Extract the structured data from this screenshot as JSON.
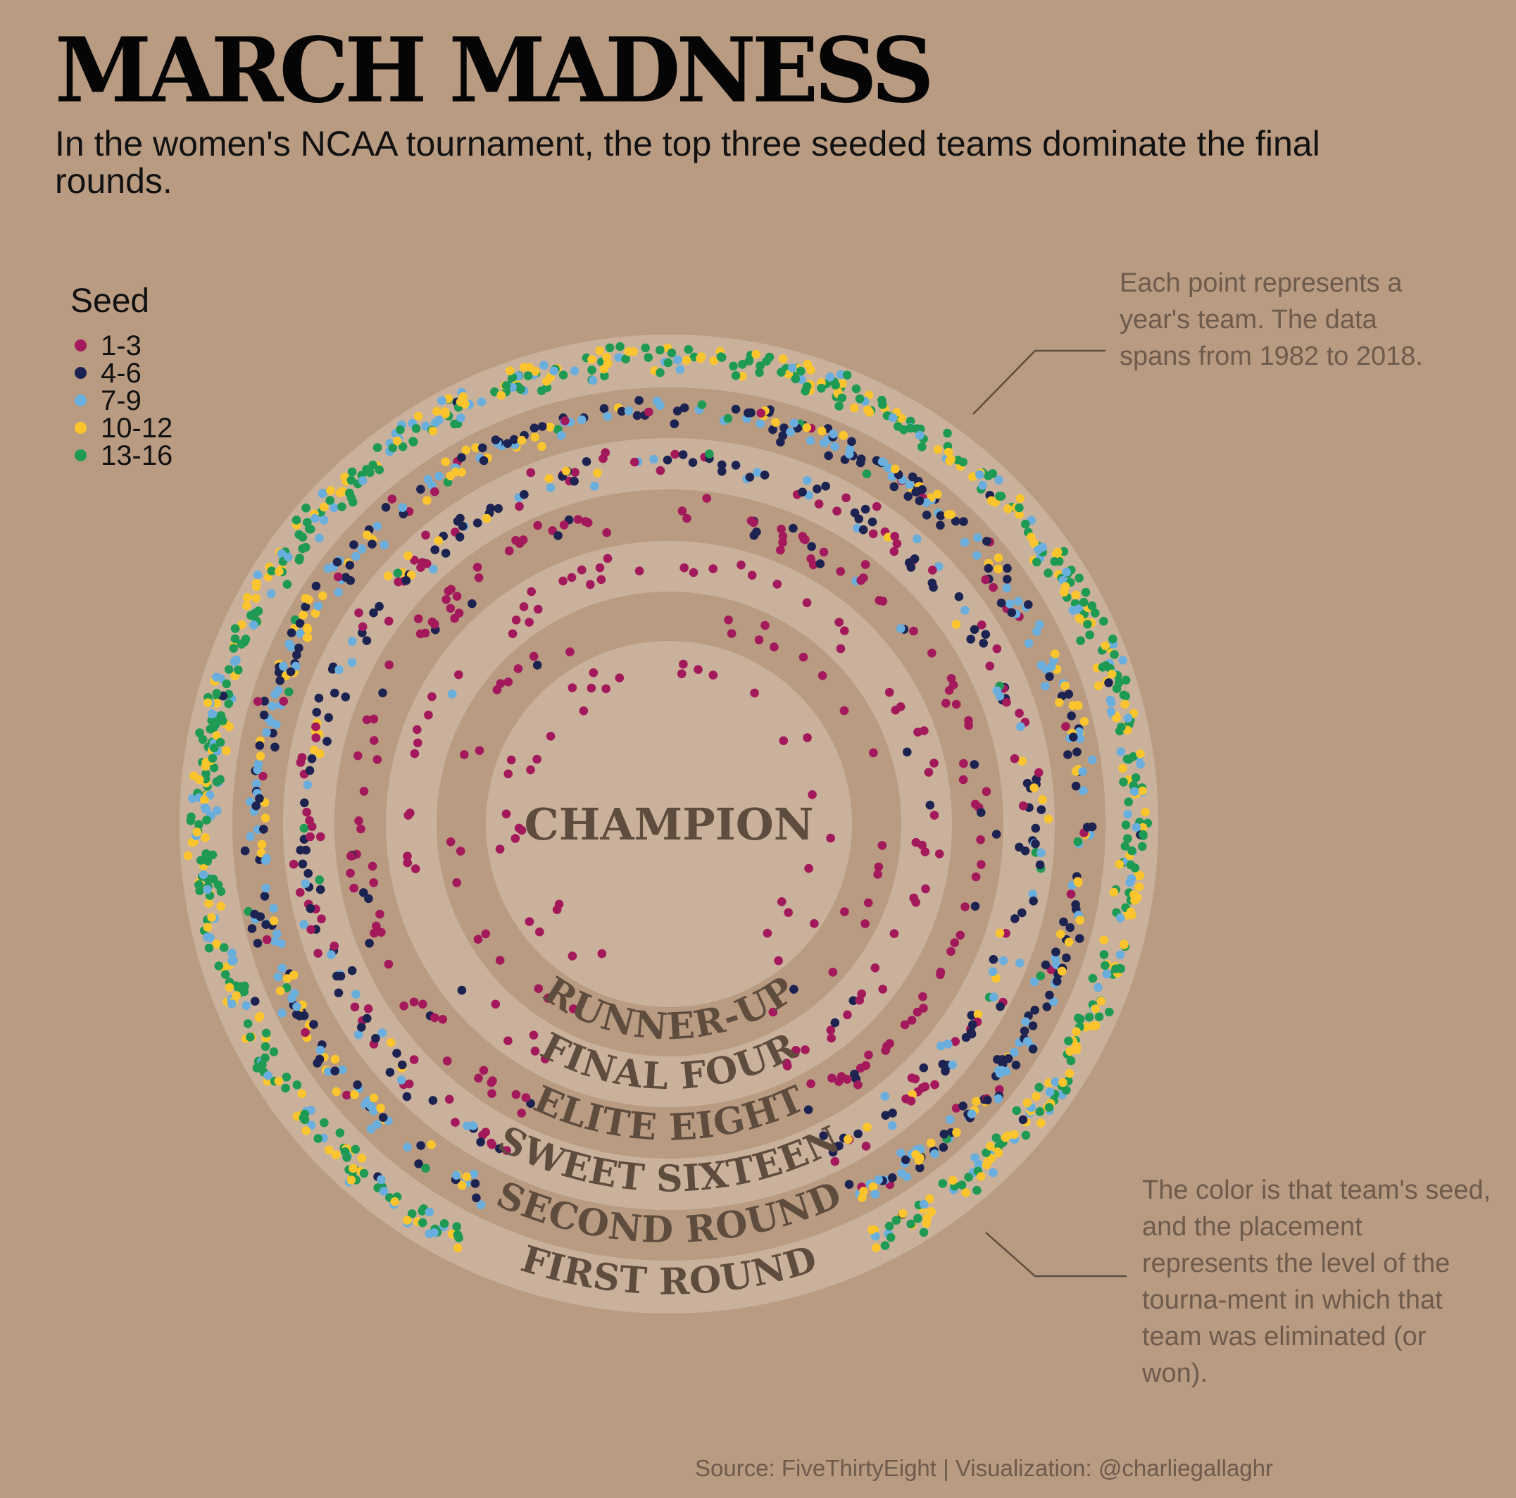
{
  "title": "MARCH MADNESS",
  "subtitle": "In the women's NCAA tournament, the top three seeded teams dominate the final rounds.",
  "legend": {
    "title": "Seed",
    "items": [
      {
        "label": "1-3",
        "color": "#a3195b"
      },
      {
        "label": "4-6",
        "color": "#1c2351"
      },
      {
        "label": "7-9",
        "color": "#6aaedd"
      },
      {
        "label": "10-12",
        "color": "#fcc52e"
      },
      {
        "label": "13-16",
        "color": "#1e9a54"
      }
    ]
  },
  "annotations": {
    "top": "Each point represents a year's team. The data spans from 1982 to 2018.",
    "bottom": "The color is that team's seed, and the placement represents the level of the tourna-ment in which that team was eliminated (or won)."
  },
  "source": "Source: FiveThirtyEight  |  Visualization: @charliegallaghr",
  "colors": {
    "background": "#b99b82",
    "ring_light": "#c9b19b",
    "ring_dark": "#b99b82",
    "round_label": "#5e4c3e",
    "annotation_line": "#5e4c3e"
  },
  "chart_data": {
    "type": "scatter",
    "layout": "concentric rings",
    "x_description": "angle within ring (one point per team per year)",
    "rounds": [
      {
        "label": "CHAMPION",
        "approx_count": 37,
        "seed_mix": {
          "1-3": 1.0
        }
      },
      {
        "label": "RUNNER-UP",
        "approx_count": 37,
        "seed_mix": {
          "1-3": 0.92,
          "4-6": 0.08
        }
      },
      {
        "label": "FINAL FOUR",
        "approx_count": 74,
        "seed_mix": {
          "1-3": 0.92,
          "4-6": 0.06,
          "7-9": 0.02
        }
      },
      {
        "label": "ELITE EIGHT",
        "approx_count": 148,
        "seed_mix": {
          "1-3": 0.74,
          "4-6": 0.2,
          "7-9": 0.05,
          "10-12": 0.01
        }
      },
      {
        "label": "SWEET SIXTEEN",
        "approx_count": 296,
        "seed_mix": {
          "1-3": 0.3,
          "4-6": 0.4,
          "7-9": 0.15,
          "10-12": 0.13,
          "13-16": 0.02
        }
      },
      {
        "label": "SECOND ROUND",
        "approx_count": 500,
        "seed_mix": {
          "1-3": 0.06,
          "4-6": 0.38,
          "7-9": 0.32,
          "10-12": 0.2,
          "13-16": 0.04
        }
      },
      {
        "label": "FIRST ROUND",
        "approx_count": 780,
        "seed_mix": {
          "4-6": 0.02,
          "7-9": 0.2,
          "10-12": 0.3,
          "13-16": 0.48
        }
      }
    ]
  }
}
